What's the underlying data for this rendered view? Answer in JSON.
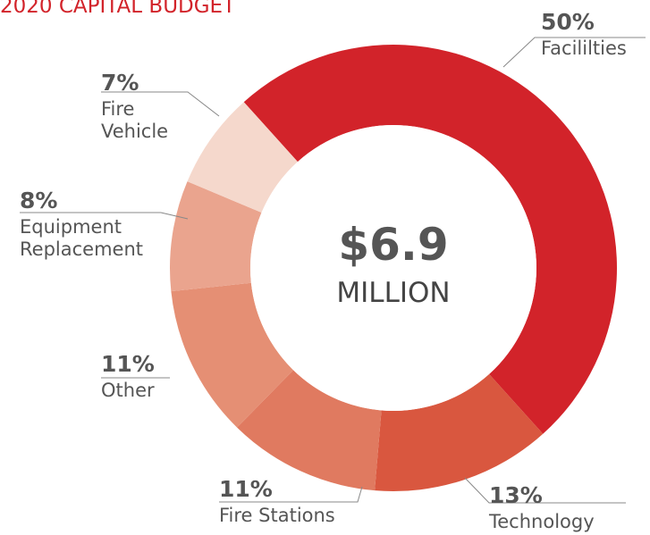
{
  "chart_data": {
    "type": "pie",
    "title": "2020 CAPITAL BUDGET",
    "center_text": [
      "$6.9",
      "MILLION"
    ],
    "categories": [
      "Facililties",
      "Technology",
      "Fire Stations",
      "Other",
      "Equipment Replacement",
      "Fire Vehicle"
    ],
    "values": [
      50,
      13,
      11,
      11,
      8,
      7
    ],
    "value_labels": [
      "50%",
      "13%",
      "11%",
      "11%",
      "8%",
      "7%"
    ],
    "colors": [
      "#d2232a",
      "#d9573f",
      "#e07a60",
      "#e58f74",
      "#eaa48e",
      "#f5d8cc"
    ]
  }
}
